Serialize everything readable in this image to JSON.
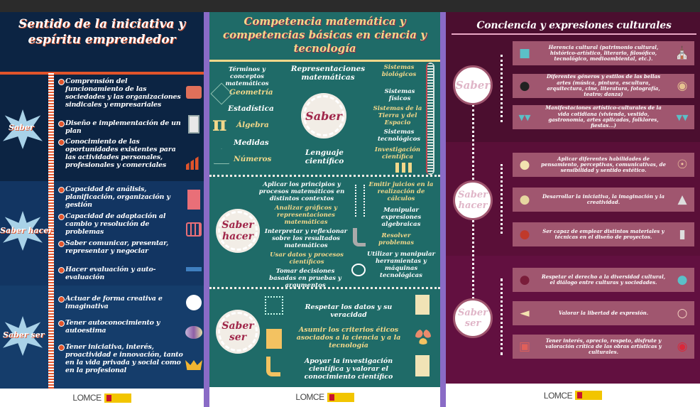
{
  "panels": [
    {
      "title": "Sentido de la iniciativa y espíritu emprendedor",
      "accent": "#e1542b",
      "background": "#0c2443",
      "sections": [
        {
          "label": "Saber",
          "items": [
            {
              "text": "Comprensión del funcionamiento de las sociedades y las organizaciones sindicales y empresariales",
              "icon": "briefcase-icon"
            },
            {
              "text": "Diseño e implementación de un plan",
              "icon": "clipboard-icon"
            },
            {
              "text": "Conocimiento de las oportunidades existentes para las actividades personales, profesionales y comerciales",
              "icon": "growth-chart-icon"
            }
          ]
        },
        {
          "label": "Saber hacer",
          "items": [
            {
              "text": "Capacidad de análisis, planificación, organización y gestión",
              "icon": "checklist-icon"
            },
            {
              "text": "Capacidad de adaptación al cambio y resolución de problemas",
              "icon": "abacus-icon"
            },
            {
              "text": "Saber comunicar, presentar, representar y negociar",
              "icon": "presenter-icon"
            },
            {
              "text": "Hacer evaluación y auto-evaluación",
              "icon": ""
            }
          ]
        },
        {
          "label": "Saber ser",
          "items": [
            {
              "text": "Actuar de forma creativa e imaginativa",
              "icon": "lightbulb-icon"
            },
            {
              "text": "Tener autoconocimiento y autoestima",
              "icon": "brain-icon"
            },
            {
              "text": "Tener iniciativa, interés, proactividad e innovación, tanto en la vida privada y social como en la profesional",
              "icon": "crown-icon"
            }
          ]
        }
      ],
      "footer": "LOMCE"
    },
    {
      "title": "Competencia matemática y competencias básicas en ciencia y tecnología",
      "background": "#1f6b68",
      "saber": {
        "label": "Saber",
        "labels": [
          "Términos y conceptos matemáticos",
          "Representaciones matemáticas",
          "Geometría",
          "Estadística",
          "Álgebra",
          "Medidas",
          "Números",
          "Lenguaje científico",
          "Sistemas biológicos",
          "Sistemas físicos",
          "Sistemas de la Tierra y del Espacio",
          "Sistemas tecnológicos",
          "Investigación científica"
        ]
      },
      "hacer": {
        "label": "Saber hacer",
        "items": [
          "Aplicar los principios y procesos matemáticos en distintos contextos",
          "Analizar gráficos y representaciones matemáticas",
          "Interpretar y reflexionar sobre los resultados matemáticos",
          "Usar datos y procesos científicos",
          "Tomar decisiones basadas en pruebas y argumentos",
          "Emitir juicios en la realización de cálculos",
          "Manipular expresiones algebraicas",
          "Resolver problemas",
          "Utilizar y manipular herramientas y máquinas tecnológicas"
        ]
      },
      "ser": {
        "label": "Saber ser",
        "items": [
          "Respetar los datos y su veracidad",
          "Asumir los criterios éticos asociados a la ciencia y a la tecnología",
          "Apoyar la investigación científica y valorar el conocimiento científico"
        ]
      },
      "footer": "LOMCE"
    },
    {
      "title": "Conciencia y expresiones culturales",
      "background": "#4b0e2f",
      "sections": [
        {
          "label": "Saber",
          "items": [
            {
              "text": "Herencia cultural (patrimonio cultural, histórico-artístico, literario, filosófico, tecnológico, medioambiental, etc.).",
              "left_icon": "book-icon",
              "right_icon": "museum-icon"
            },
            {
              "text": "Diferentes géneros y estilos de las bellas artes (música, pintura, escultura, arquitectura, cine, literatura, fotografía, teatro; danza)",
              "left_icon": "vinyl-record-icon",
              "right_icon": "palette-icon"
            },
            {
              "text": "Manifestaciones artístico-culturales de la vida cotidiana (vivienda, vestido, gastronomía, artes aplicadas, folklores, fiestas...)",
              "left_icon": "bunting-icon",
              "right_icon": "bunting-icon"
            }
          ]
        },
        {
          "label": "Saber hacer",
          "items": [
            {
              "text": "Aplicar diferentes habilidades de pensamiento, perceptivas, comunicativas, de sensibilidad y sentido estético.",
              "left_icon": "speech-bubbles-icon",
              "right_icon": "eye-icon"
            },
            {
              "text": "Desarrollar la iniciativa, la imaginación y la creatividad.",
              "left_icon": "microphone-icon",
              "right_icon": "pen-nib-icon"
            },
            {
              "text": "Ser capaz de emplear distintos materiales y técnicas en el diseño de proyectos.",
              "left_icon": "pushpin-icon",
              "right_icon": "smartphone-icon"
            }
          ]
        },
        {
          "label": "Saber ser",
          "items": [
            {
              "text": "Respetar el derecho a la diversidad cultural, el diálogo entre culturas y sociedades.",
              "left_icon": "lantern-icon",
              "right_icon": "globe-icon"
            },
            {
              "text": "Valorar la libertad de expresión.",
              "left_icon": "megaphone-icon",
              "right_icon": "thought-bubbles-icon"
            },
            {
              "text": "Tener interés, aprecio, respeto, disfrute y valoración crítica de las obras artísticas y culturales.",
              "left_icon": "typewriter-icon",
              "right_icon": "camera-icon"
            }
          ]
        }
      ],
      "footer": "LOMCE"
    }
  ]
}
